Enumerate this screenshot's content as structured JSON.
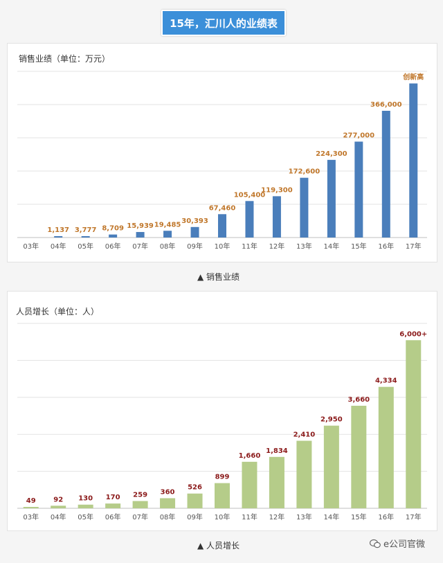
{
  "page": {
    "title": "15年，汇川人的业绩表",
    "watermark": "e公司官微"
  },
  "chart_data": [
    {
      "type": "bar",
      "title": "销售业绩（单位：万元）",
      "caption": "▲ 销售业绩",
      "categories": [
        "03年",
        "04年",
        "05年",
        "06年",
        "07年",
        "08年",
        "09年",
        "10年",
        "11年",
        "12年",
        "13年",
        "14年",
        "15年",
        "16年",
        "17年"
      ],
      "values": [
        null,
        1137,
        3777,
        8709,
        15939,
        19485,
        30393,
        67460,
        105400,
        119300,
        172600,
        224300,
        277000,
        366000,
        445000
      ],
      "labels": [
        "",
        "1,137",
        "3,777",
        "8,709",
        "15,939",
        "19,485",
        "30,393",
        "67,460",
        "105,400",
        "119,300",
        "172,600",
        "224,300",
        "277,000",
        "366,000",
        "创新高"
      ],
      "ylim": [
        0,
        480000
      ],
      "grid": true,
      "bar_color": "#4a7ebb",
      "label_color": "#c0772b"
    },
    {
      "type": "bar",
      "title": "人员增长（单位：人）",
      "caption": "▲ 人员增长",
      "categories": [
        "03年",
        "04年",
        "05年",
        "06年",
        "07年",
        "08年",
        "09年",
        "10年",
        "11年",
        "12年",
        "13年",
        "14年",
        "15年",
        "16年",
        "17年"
      ],
      "values": [
        49,
        92,
        130,
        170,
        259,
        360,
        526,
        899,
        1660,
        1834,
        2410,
        2950,
        3660,
        4334,
        6000
      ],
      "labels": [
        "49",
        "92",
        "130",
        "170",
        "259",
        "360",
        "526",
        "899",
        "1,660",
        "1,834",
        "2,410",
        "2,950",
        "3,660",
        "4,334",
        "6,000+"
      ],
      "ylim": [
        0,
        6600
      ],
      "grid": true,
      "bar_color": "#b5cc89",
      "label_color": "#8b1a1a"
    }
  ]
}
